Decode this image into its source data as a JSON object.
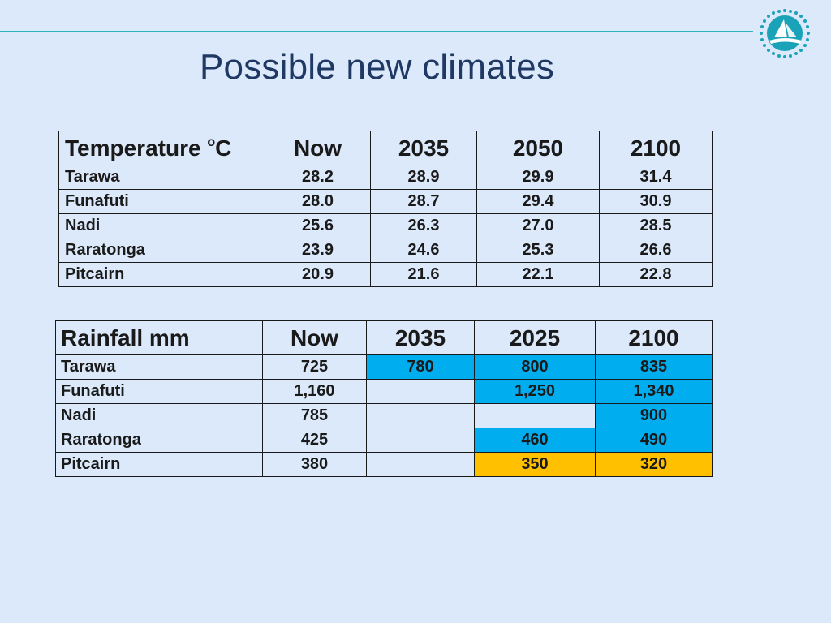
{
  "slide": {
    "title": "Possible new climates"
  },
  "colors": {
    "blue_highlight": "#00aeef",
    "orange_highlight": "#ffc000",
    "rule": "#2bb3c0",
    "title": "#1f3864"
  },
  "temperature_table": {
    "header_label": "Temperature ",
    "header_superscript": "o",
    "header_unit": "C",
    "columns": [
      "Now",
      "2035",
      "2050",
      "2100"
    ],
    "rows": [
      {
        "place": "Tarawa",
        "values": [
          "28.2",
          "28.9",
          "29.9",
          "31.4"
        ]
      },
      {
        "place": "Funafuti",
        "values": [
          "28.0",
          "28.7",
          "29.4",
          "30.9"
        ]
      },
      {
        "place": "Nadi",
        "values": [
          "25.6",
          "26.3",
          "27.0",
          "28.5"
        ]
      },
      {
        "place": "Raratonga",
        "values": [
          "23.9",
          "24.6",
          "25.3",
          "26.6"
        ]
      },
      {
        "place": "Pitcairn",
        "values": [
          "20.9",
          "21.6",
          "22.1",
          "22.8"
        ]
      }
    ]
  },
  "rainfall_table": {
    "header_label": "Rainfall mm",
    "columns": [
      "Now",
      "2035",
      "2025",
      "2100"
    ],
    "rows": [
      {
        "place": "Tarawa",
        "values": [
          "725",
          "780",
          "800",
          "835"
        ]
      },
      {
        "place": "Funafuti",
        "values": [
          "1,160",
          "",
          "1,250",
          "1,340"
        ]
      },
      {
        "place": "Nadi",
        "values": [
          "785",
          "",
          "",
          "900"
        ]
      },
      {
        "place": "Raratonga",
        "values": [
          "425",
          "",
          "460",
          "490"
        ]
      },
      {
        "place": "Pitcairn",
        "values": [
          "380",
          "",
          "350",
          "320"
        ]
      }
    ]
  }
}
